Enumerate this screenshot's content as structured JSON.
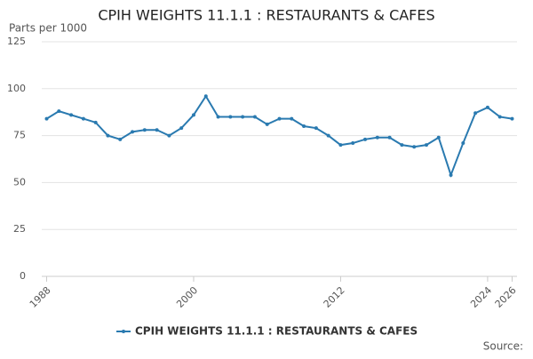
{
  "chart_data": {
    "type": "line",
    "title": "CPIH WEIGHTS 11.1.1 : RESTAURANTS & CAFES",
    "y_label": "Parts per 1000",
    "source": "Source:",
    "x": [
      1988,
      1989,
      1990,
      1991,
      1992,
      1993,
      1994,
      1995,
      1996,
      1997,
      1998,
      1999,
      2000,
      2001,
      2002,
      2003,
      2004,
      2005,
      2006,
      2007,
      2008,
      2009,
      2010,
      2011,
      2012,
      2013,
      2014,
      2015,
      2016,
      2017,
      2018,
      2019,
      2020,
      2021,
      2022,
      2023,
      2024,
      2025,
      2026
    ],
    "series": [
      {
        "name": "CPIH WEIGHTS 11.1.1 : RESTAURANTS & CAFES",
        "color": "#2a7ab0",
        "values": [
          84,
          88,
          86,
          84,
          82,
          75,
          73,
          77,
          78,
          78,
          75,
          79,
          86,
          96,
          85,
          85,
          85,
          85,
          81,
          84,
          84,
          80,
          79,
          75,
          70,
          71,
          73,
          74,
          74,
          70,
          69,
          70,
          74,
          54,
          71,
          87,
          90,
          85,
          84
        ]
      }
    ],
    "xlim": [
      1987.6,
      2026.4
    ],
    "xticks": [
      1988,
      2000,
      2012,
      2024,
      2026
    ],
    "ylim": [
      0,
      125
    ],
    "yticks": [
      0,
      25,
      50,
      75,
      100,
      125
    ],
    "grid": true,
    "legend": "bottom"
  }
}
